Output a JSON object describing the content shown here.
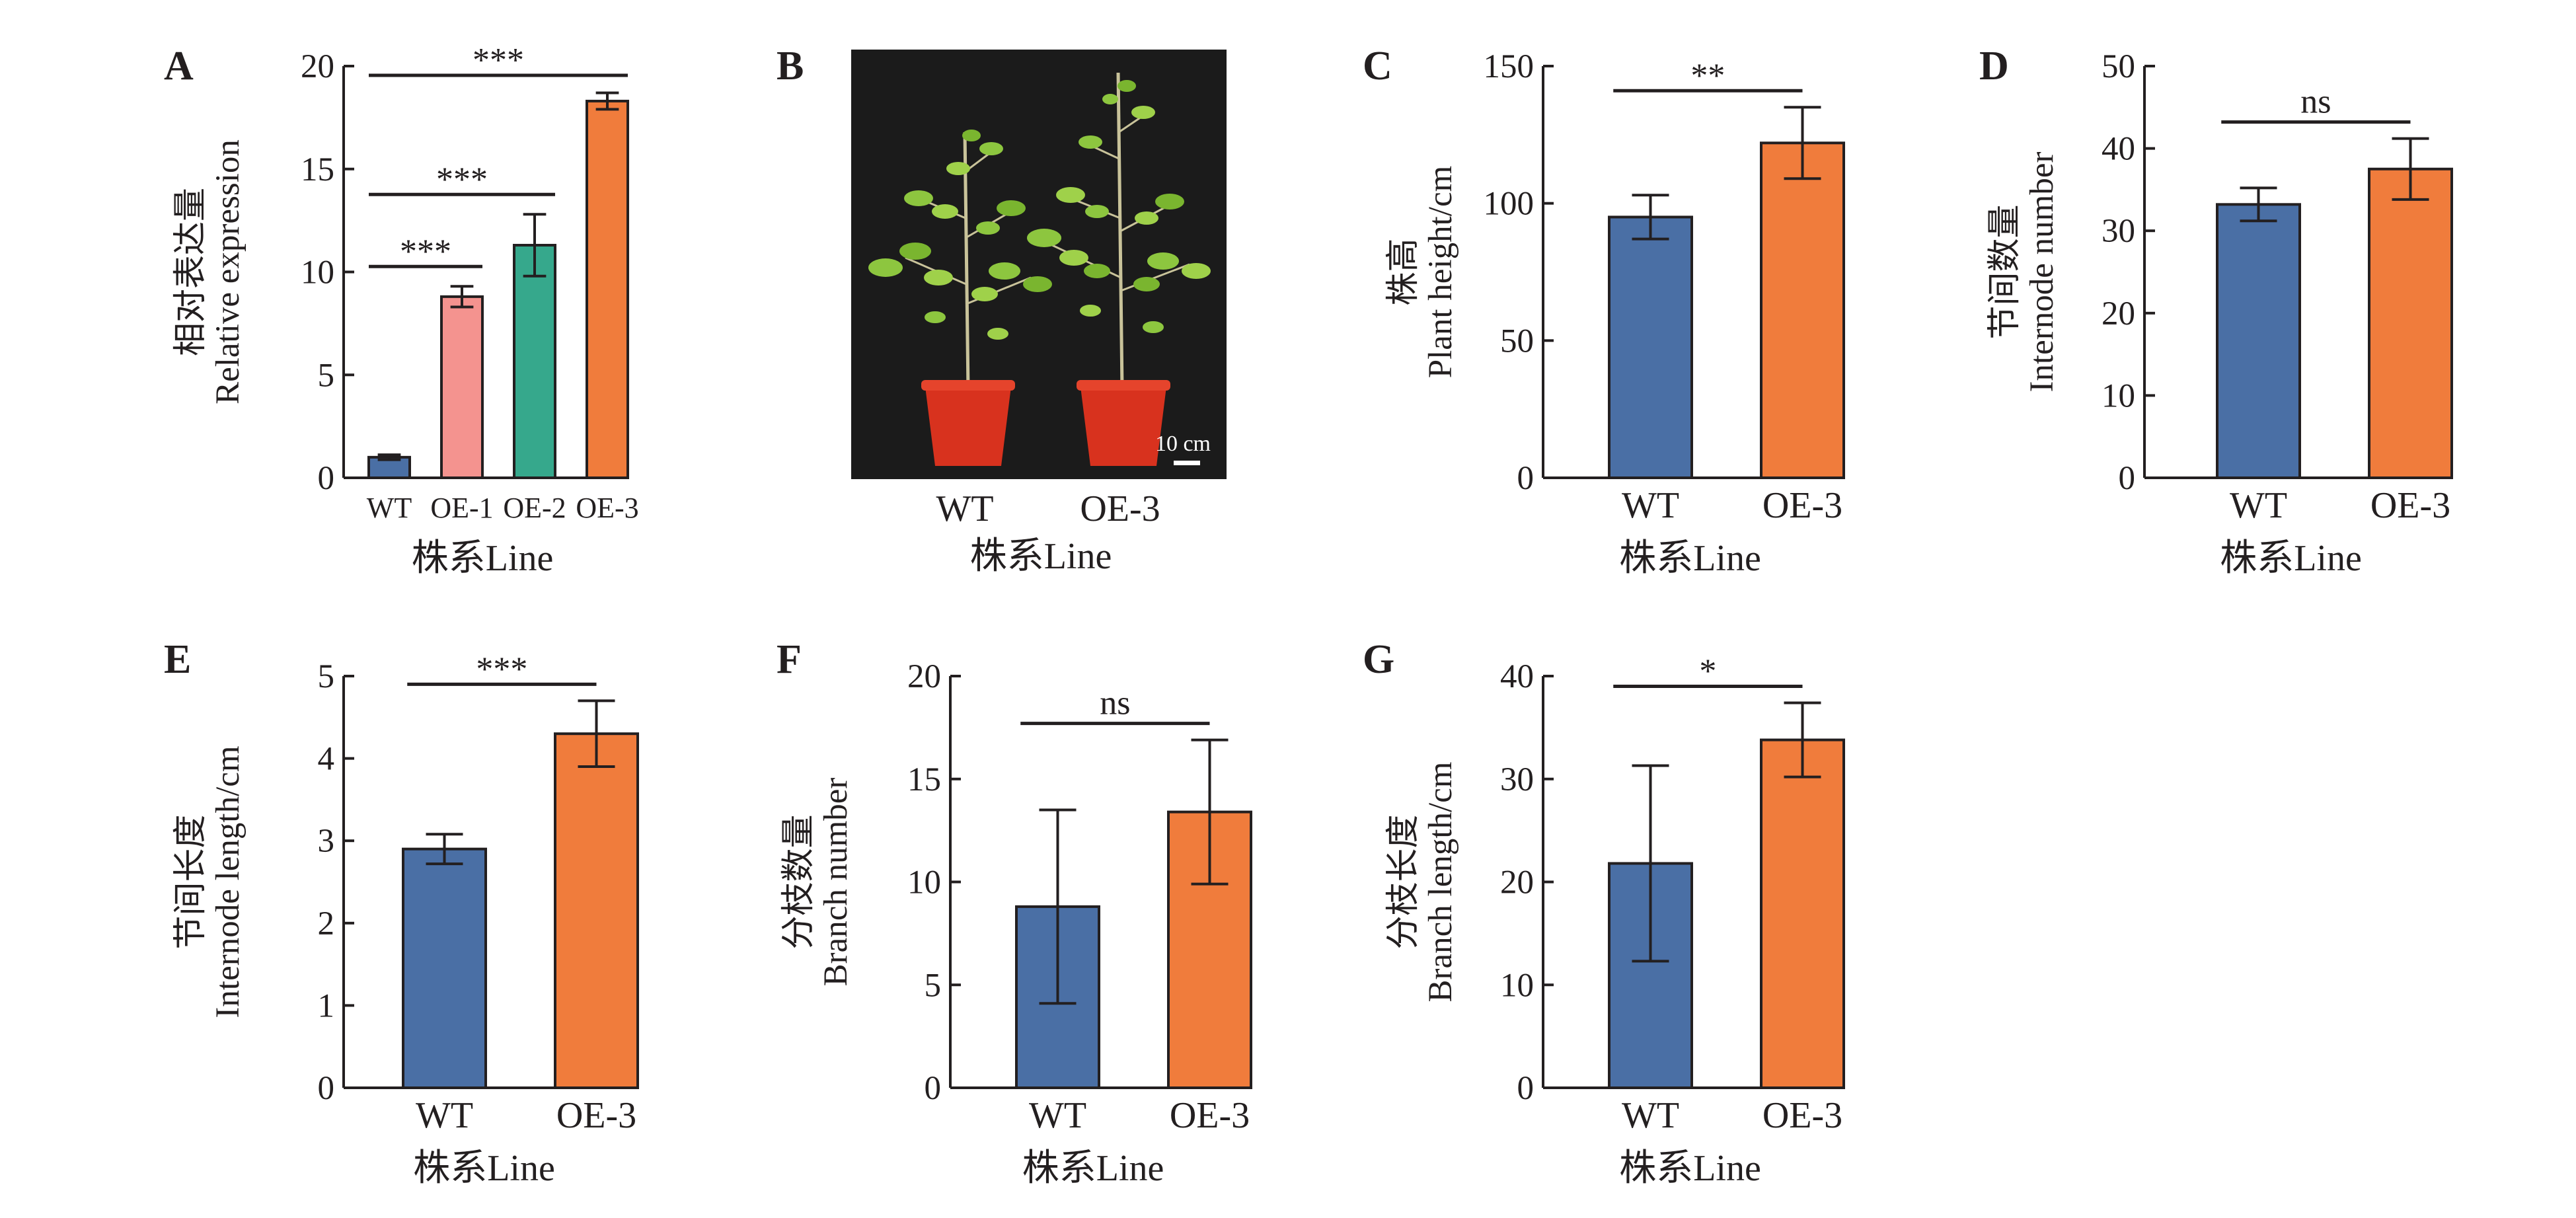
{
  "colors": {
    "axis": "#231f20",
    "blue": "#4a6fa5",
    "orange": "#f07c3c",
    "pink": "#f4938f",
    "teal": "#36a88c",
    "photo_bg": "#1b1b1b",
    "pot": "#d8321e",
    "leaf": "#8dc63f"
  },
  "panel_b": {
    "letter": "B",
    "categories": [
      "WT",
      "OE-3"
    ],
    "xlabel": "株系Line",
    "scale_bar": "10 cm"
  },
  "chart_data": [
    {
      "panel": "A",
      "type": "bar",
      "categories": [
        "WT",
        "OE-1",
        "OE-2",
        "OE-3"
      ],
      "values": [
        1.0,
        8.8,
        11.3,
        18.3
      ],
      "errors": [
        0.12,
        0.5,
        1.5,
        0.4
      ],
      "colors": [
        "#4a6fa5",
        "#f4938f",
        "#36a88c",
        "#f07c3c"
      ],
      "ylabel_zh": "相对表达量",
      "ylabel_en": "Relative expression",
      "xlabel": "株系Line",
      "ylim": [
        0,
        20
      ],
      "yticks": [
        0,
        5,
        10,
        15,
        20
      ],
      "significance": [
        {
          "from": 0,
          "to": 1,
          "label": "***"
        },
        {
          "from": 0,
          "to": 2,
          "label": "***"
        },
        {
          "from": 0,
          "to": 3,
          "label": "***"
        }
      ]
    },
    {
      "panel": "C",
      "type": "bar",
      "categories": [
        "WT",
        "OE-3"
      ],
      "values": [
        95,
        122
      ],
      "errors": [
        8,
        13
      ],
      "colors": [
        "#4a6fa5",
        "#f07c3c"
      ],
      "ylabel_zh": "株高",
      "ylabel_en": "Plant height/cm",
      "xlabel": "株系Line",
      "ylim": [
        0,
        150
      ],
      "yticks": [
        0,
        50,
        100,
        150
      ],
      "significance": [
        {
          "from": 0,
          "to": 1,
          "label": "**"
        }
      ]
    },
    {
      "panel": "D",
      "type": "bar",
      "categories": [
        "WT",
        "OE-3"
      ],
      "values": [
        33.2,
        37.5
      ],
      "errors": [
        2.0,
        3.7
      ],
      "colors": [
        "#4a6fa5",
        "#f07c3c"
      ],
      "ylabel_zh": "节间数量",
      "ylabel_en": "Internode number",
      "xlabel": "株系Line",
      "ylim": [
        0,
        50
      ],
      "yticks": [
        0,
        10,
        20,
        30,
        40,
        50
      ],
      "significance": [
        {
          "from": 0,
          "to": 1,
          "label": "ns"
        }
      ]
    },
    {
      "panel": "E",
      "type": "bar",
      "categories": [
        "WT",
        "OE-3"
      ],
      "values": [
        2.9,
        4.3
      ],
      "errors": [
        0.18,
        0.4
      ],
      "colors": [
        "#4a6fa5",
        "#f07c3c"
      ],
      "ylabel_zh": "节间长度",
      "ylabel_en": "Internode length/cm",
      "xlabel": "株系Line",
      "ylim": [
        0,
        5
      ],
      "yticks": [
        0,
        1,
        2,
        3,
        4,
        5
      ],
      "significance": [
        {
          "from": 0,
          "to": 1,
          "label": "***"
        }
      ]
    },
    {
      "panel": "F",
      "type": "bar",
      "categories": [
        "WT",
        "OE-3"
      ],
      "values": [
        8.8,
        13.4
      ],
      "errors": [
        4.7,
        3.5
      ],
      "colors": [
        "#4a6fa5",
        "#f07c3c"
      ],
      "ylabel_zh": "分枝数量",
      "ylabel_en": "Branch number",
      "xlabel": "株系Line",
      "ylim": [
        0,
        20
      ],
      "yticks": [
        0,
        5,
        10,
        15,
        20
      ],
      "significance": [
        {
          "from": 0,
          "to": 1,
          "label": "ns"
        }
      ]
    },
    {
      "panel": "G",
      "type": "bar",
      "categories": [
        "WT",
        "OE-3"
      ],
      "values": [
        21.8,
        33.8
      ],
      "errors": [
        9.5,
        3.6
      ],
      "colors": [
        "#4a6fa5",
        "#f07c3c"
      ],
      "ylabel_zh": "分枝长度",
      "ylabel_en": "Branch length/cm",
      "xlabel": "株系Line",
      "ylim": [
        0,
        40
      ],
      "yticks": [
        0,
        10,
        20,
        30,
        40
      ],
      "significance": [
        {
          "from": 0,
          "to": 1,
          "label": "*"
        }
      ]
    }
  ]
}
